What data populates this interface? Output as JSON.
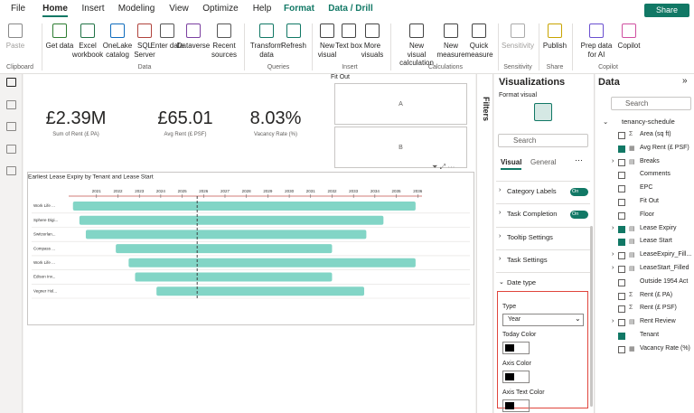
{
  "ribbon": {
    "tabs": [
      {
        "label": "File"
      },
      {
        "label": "Home",
        "style": "active"
      },
      {
        "label": "Insert"
      },
      {
        "label": "Modeling"
      },
      {
        "label": "View"
      },
      {
        "label": "Optimize"
      },
      {
        "label": "Help"
      },
      {
        "label": "Format",
        "style": "accent"
      },
      {
        "label": "Data / Drill",
        "style": "accent"
      }
    ],
    "share": "Share",
    "groups": [
      {
        "label": "Clipboard",
        "buttons": [
          "Paste"
        ]
      },
      {
        "label": "Data",
        "buttons": [
          "Get data",
          "Excel workbook",
          "OneLake catalog",
          "SQL Server",
          "Enter data",
          "Dataverse",
          "Recent sources"
        ]
      },
      {
        "label": "Queries",
        "buttons": [
          "Transform data",
          "Refresh"
        ]
      },
      {
        "label": "Insert",
        "buttons": [
          "New visual",
          "Text box",
          "More visuals"
        ]
      },
      {
        "label": "Calculations",
        "buttons": [
          "New visual calculation",
          "New measure",
          "Quick measure"
        ]
      },
      {
        "label": "Sensitivity",
        "buttons": [
          "Sensitivity"
        ]
      },
      {
        "label": "Share",
        "buttons": [
          "Publish"
        ]
      },
      {
        "label": "Copilot",
        "buttons": [
          "Prep data for AI",
          "Copilot"
        ]
      }
    ]
  },
  "canvas": {
    "cards": [
      {
        "value": "£2.39M",
        "label": "Sum of Rent (£ PA)"
      },
      {
        "value": "£65.01",
        "label": "Avg Rent (£ PSF)"
      },
      {
        "value": "8.03%",
        "label": "Vacancy Rate (%)"
      }
    ],
    "slicer": {
      "title": "Fit Out",
      "items": [
        "A",
        "B"
      ]
    },
    "gantt": {
      "title": "Earliest Lease Expiry by Tenant and Lease Start",
      "xlim": [
        2019.7,
        2036.2
      ],
      "xticks": [
        2021,
        2022,
        2023,
        2024,
        2025,
        2026,
        2027,
        2028,
        2029,
        2030,
        2031,
        2032,
        2033,
        2034,
        2035,
        2036
      ],
      "today": 2025.7,
      "color": "#82d5c6",
      "categories": [
        "Work Life ...",
        "Sphere Digi...",
        "Switzerlan...",
        "Compass ...",
        "Work Life ...",
        "Edison Inv...",
        "Vegner Hol..."
      ],
      "starts": [
        2019.9,
        2020.2,
        2020.5,
        2021.9,
        2022.5,
        2022.8,
        2023.8
      ],
      "ends": [
        2035.9,
        2034.4,
        2033.6,
        2032.0,
        2035.9,
        2032.0,
        2033.5
      ]
    }
  },
  "filters": {
    "title": "Filters"
  },
  "visualizations": {
    "title": "Visualizations",
    "subtitle": "Format visual",
    "search": "Search",
    "tabs": [
      "Visual",
      "General"
    ],
    "sections": [
      {
        "label": "Category Labels",
        "toggle": "On"
      },
      {
        "label": "Task Completion",
        "toggle": "On"
      },
      {
        "label": "Tooltip Settings"
      },
      {
        "label": "Task Settings"
      },
      {
        "label": "Date type",
        "expanded": true
      }
    ],
    "date_type": {
      "type_label": "Type",
      "type_value": "Year",
      "colors": [
        "Today Color",
        "Axis Color",
        "Axis Text Color"
      ]
    }
  },
  "data_pane": {
    "title": "Data",
    "search": "Search",
    "table": "tenancy-schedule",
    "fields": [
      {
        "name": "Area (sq ft)",
        "icon": "sigma"
      },
      {
        "name": "Avg Rent (£ PSF)",
        "icon": "calc",
        "checked": true
      },
      {
        "name": "Breaks",
        "icon": "table",
        "expand": true
      },
      {
        "name": "Comments"
      },
      {
        "name": "EPC"
      },
      {
        "name": "Fit Out"
      },
      {
        "name": "Floor"
      },
      {
        "name": "Lease Expiry",
        "icon": "table",
        "expand": true,
        "checked": true
      },
      {
        "name": "Lease Start",
        "icon": "table",
        "checked": true
      },
      {
        "name": "LeaseExpiry_Fill...",
        "icon": "table",
        "expand": true
      },
      {
        "name": "LeaseStart_Filled",
        "icon": "table",
        "expand": true
      },
      {
        "name": "Outside 1954 Act"
      },
      {
        "name": "Rent (£ PA)",
        "icon": "sigma"
      },
      {
        "name": "Rent (£ PSF)",
        "icon": "sigma"
      },
      {
        "name": "Rent Review",
        "icon": "table",
        "expand": true
      },
      {
        "name": "Tenant",
        "checked": true
      },
      {
        "name": "Vacancy Rate (%)",
        "icon": "calc"
      }
    ]
  }
}
